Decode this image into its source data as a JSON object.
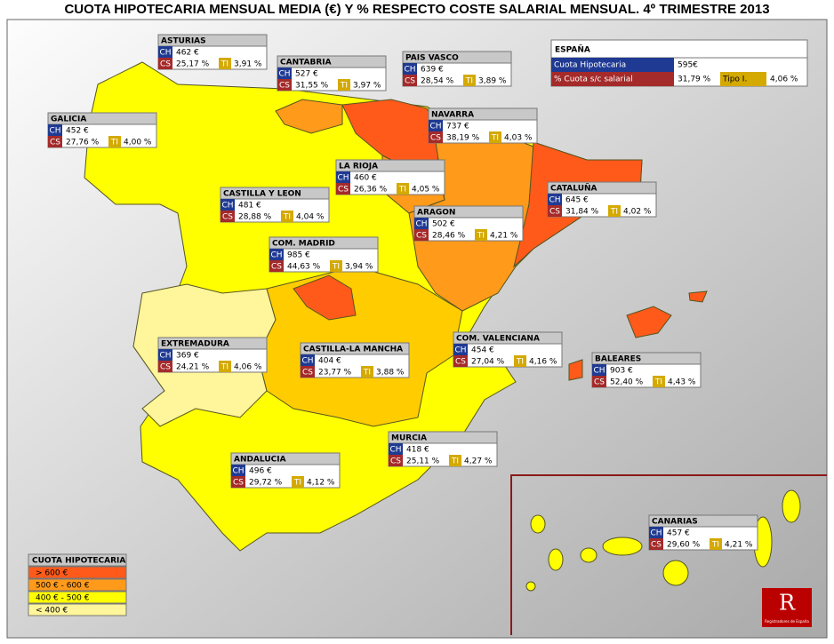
{
  "title": "CUOTA HIPOTECARIA MENSUAL MEDIA (€) Y % RESPECTO COSTE SALARIAL MENSUAL. 4º TRIMESTRE 2013",
  "row_labels": {
    "ch": "CH",
    "cs": "CS",
    "ti": "TI"
  },
  "regions": [
    {
      "name": "ASTURIAS",
      "ch": "462 €",
      "cs": "25,17 %",
      "ti": "3,91 %"
    },
    {
      "name": "CANTABRIA",
      "ch": "527 €",
      "cs": "31,55 %",
      "ti": "3,97 %"
    },
    {
      "name": "PAIS VASCO",
      "ch": "639 €",
      "cs": "28,54 %",
      "ti": "3,89 %"
    },
    {
      "name": "GALICIA",
      "ch": "452 €",
      "cs": "27,76 %",
      "ti": "4,00 %"
    },
    {
      "name": "NAVARRA",
      "ch": "737 €",
      "cs": "38,19 %",
      "ti": "4,03 %"
    },
    {
      "name": "LA RIOJA",
      "ch": "460 €",
      "cs": "26,36 %",
      "ti": "4,05 %"
    },
    {
      "name": "CASTILLA Y LEON",
      "ch": "481 €",
      "cs": "28,88 %",
      "ti": "4,04 %"
    },
    {
      "name": "ARAGON",
      "ch": "502 €",
      "cs": "28,46 %",
      "ti": "4,21 %"
    },
    {
      "name": "CATALUÑA",
      "ch": "645 €",
      "cs": "31,84 %",
      "ti": "4,02 %"
    },
    {
      "name": "COM. MADRID",
      "ch": "985 €",
      "cs": "44,63 %",
      "ti": "3,94 %"
    },
    {
      "name": "EXTREMADURA",
      "ch": "369 €",
      "cs": "24,21 %",
      "ti": "4,06 %"
    },
    {
      "name": "CASTILLA-LA MANCHA",
      "ch": "404 €",
      "cs": "23,77 %",
      "ti": "3,88 %"
    },
    {
      "name": "COM. VALENCIANA",
      "ch": "454 €",
      "cs": "27,04 %",
      "ti": "4,16 %"
    },
    {
      "name": "BALEARES",
      "ch": "903 €",
      "cs": "52,40 %",
      "ti": "4,43 %"
    },
    {
      "name": "MURCIA",
      "ch": "418 €",
      "cs": "25,11 %",
      "ti": "4,27 %"
    },
    {
      "name": "ANDALUCIA",
      "ch": "496 €",
      "cs": "29,72 %",
      "ti": "4,12 %"
    },
    {
      "name": "CANARIAS",
      "ch": "457 €",
      "cs": "29,60 %",
      "ti": "4,21 %"
    }
  ],
  "spain": {
    "title": "ESPAÑA",
    "rows": [
      {
        "label": "Cuota Hipotecaria",
        "value": "595€"
      },
      {
        "label": "% Cuota s/c salarial",
        "value": "31,79 %"
      },
      {
        "label": "Tipo I.",
        "value": "4,06 %"
      }
    ]
  },
  "legend": {
    "title": "CUOTA HIPOTECARIA",
    "items": [
      "> 600 €",
      "500 € - 600 €",
      "400 € - 500 €",
      "< 400 €"
    ]
  },
  "logo_text": "Registradores de España"
}
